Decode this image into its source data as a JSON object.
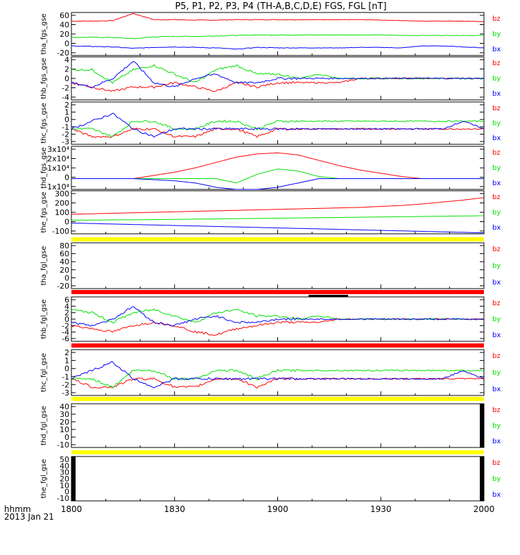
{
  "title": "P5, P1, P2, P3, P4 (TH-A,B,C,D,E) FGS, FGL [nT]",
  "colors": {
    "bx": "#0000ff",
    "by": "#00e000",
    "bz": "#ff0000",
    "bar_yellow": "#ffff00",
    "bar_red": "#ff0000",
    "axis": "#000000"
  },
  "time_axis": {
    "corner_label_1": "hhmm",
    "corner_label_2": "2013 Jan 21",
    "tick_labels": [
      "1800",
      "1830",
      "1900",
      "1930",
      "2000"
    ],
    "range_minutes": [
      0,
      120
    ]
  },
  "chart_data": [
    {
      "type": "line",
      "ylabel": "tha_fgs_gse",
      "ytick_labels": [
        "60",
        "40",
        "20",
        "0",
        "-20"
      ],
      "ylim": [
        -25,
        65
      ],
      "series": [
        {
          "name": "bz",
          "values": [
            47,
            47,
            48,
            63,
            50,
            50,
            49,
            49,
            50,
            50,
            50,
            50,
            50,
            50,
            50,
            49,
            48,
            47,
            47,
            47,
            46
          ]
        },
        {
          "name": "by",
          "values": [
            13,
            13,
            13,
            10,
            14,
            15,
            15,
            16,
            17,
            18,
            18,
            18,
            18,
            18,
            18,
            18,
            17,
            17,
            17,
            17,
            17
          ]
        },
        {
          "name": "bx",
          "values": [
            -5,
            -6,
            -7,
            -10,
            -8,
            -7,
            -8,
            -9,
            -12,
            -8,
            -9,
            -9,
            -9,
            -9,
            -8,
            -8,
            -9,
            -5,
            -5,
            -7,
            -9
          ]
        }
      ]
    },
    {
      "type": "line",
      "ylabel": "thb_fgs_gse",
      "ytick_labels": [
        "4",
        "2",
        "0",
        "-2",
        "-4"
      ],
      "ylim": [
        -5,
        5
      ],
      "series": [
        {
          "name": "bz",
          "values": [
            -1,
            -2,
            -3,
            -2,
            -2,
            -1,
            -2,
            -3,
            -1,
            -2,
            -1,
            -1,
            -1,
            -1,
            0,
            0,
            0,
            0,
            0,
            0,
            0
          ]
        },
        {
          "name": "by",
          "values": [
            2,
            2,
            -1,
            2,
            3,
            1,
            -1,
            2,
            3,
            1,
            1,
            0,
            1,
            0,
            0,
            0,
            0,
            0,
            0,
            0,
            0
          ]
        },
        {
          "name": "bx",
          "values": [
            -1,
            -2,
            0,
            4,
            -1,
            -2,
            0,
            1,
            -1,
            -1,
            0,
            0,
            0,
            0,
            0,
            0,
            0,
            0,
            0,
            0,
            0
          ]
        }
      ]
    },
    {
      "type": "line",
      "ylabel": "thc_fgs_gse",
      "ytick_labels": [
        "2",
        "1",
        "0",
        "-1",
        "-2",
        "-3"
      ],
      "ylim": [
        -3,
        2.5
      ],
      "series": [
        {
          "name": "bz",
          "values": [
            -1,
            -2,
            -2,
            -1,
            -1,
            -2,
            -2,
            -1,
            -1,
            -2,
            -1,
            -1,
            -1,
            -1,
            -1,
            -1,
            -1,
            -1,
            -1,
            -1,
            -1
          ]
        },
        {
          "name": "by",
          "values": [
            -1,
            -1,
            -2,
            0,
            0,
            -1,
            -1,
            0,
            0,
            -1,
            0,
            0,
            0,
            0,
            0,
            0,
            0,
            0,
            0,
            0,
            0
          ]
        },
        {
          "name": "bx",
          "values": [
            -1,
            0,
            1,
            -1,
            -2,
            -1,
            -1,
            -1,
            -1,
            -1,
            -1,
            -1,
            -1,
            -1,
            -1,
            -1,
            -1,
            -1,
            -1,
            0,
            -1
          ]
        }
      ]
    },
    {
      "type": "line",
      "ylabel": "thd_fgs_gse",
      "ytick_labels": [
        "3x10⁴",
        "2x10⁴",
        "1x10⁴",
        "0",
        "-1x10⁴"
      ],
      "ylim": [
        -10000,
        30000
      ],
      "series": [
        {
          "name": "bz",
          "values": [
            0,
            0,
            0,
            0,
            3000,
            6000,
            10000,
            15000,
            20000,
            23000,
            24000,
            22000,
            17000,
            12000,
            8000,
            5000,
            2000,
            0,
            0,
            0,
            0
          ]
        },
        {
          "name": "by",
          "values": [
            0,
            0,
            0,
            0,
            0,
            0,
            0,
            0,
            -4000,
            4000,
            9000,
            7000,
            2000,
            0,
            0,
            0,
            0,
            0,
            0,
            0,
            0
          ]
        },
        {
          "name": "bx",
          "values": [
            0,
            0,
            0,
            0,
            -1000,
            -2000,
            -4000,
            -8000,
            -10000,
            -10000,
            -8000,
            -4000,
            0,
            0,
            0,
            0,
            0,
            0,
            0,
            0,
            0
          ]
        }
      ]
    },
    {
      "type": "line",
      "ylabel": "the_fgs_gse",
      "ytick_labels": [
        "300",
        "200",
        "100",
        "0",
        "-100"
      ],
      "ylim": [
        -130,
        310
      ],
      "series": [
        {
          "name": "bz",
          "values": [
            70,
            75,
            80,
            85,
            90,
            95,
            100,
            105,
            110,
            115,
            120,
            125,
            130,
            135,
            140,
            150,
            160,
            175,
            195,
            215,
            240
          ]
        },
        {
          "name": "by",
          "values": [
            10,
            10,
            12,
            13,
            15,
            17,
            20,
            22,
            25,
            27,
            30,
            32,
            35,
            37,
            40,
            42,
            45,
            47,
            50,
            52,
            55
          ]
        },
        {
          "name": "bx",
          "values": [
            -20,
            -25,
            -30,
            -35,
            -40,
            -45,
            -50,
            -55,
            -60,
            -65,
            -70,
            -75,
            -80,
            -85,
            -90,
            -95,
            -100,
            -105,
            -110,
            -115,
            -120
          ]
        }
      ]
    },
    {
      "type": "line",
      "ylabel": "tha_fgl_gse",
      "ytick_labels": [
        "80",
        "60",
        "40",
        "20",
        "0",
        "-20"
      ],
      "ylim": [
        -25,
        90
      ],
      "series": []
    },
    {
      "type": "line",
      "ylabel": "thb_fgl_gse",
      "ytick_labels": [
        "6",
        "4",
        "2",
        "0",
        "-2",
        "-4",
        "-6"
      ],
      "ylim": [
        -7,
        7
      ],
      "series": [
        {
          "name": "bz",
          "values": [
            -2,
            -3,
            -4,
            -2,
            -1,
            -2,
            -4,
            -5,
            -3,
            -2,
            -1,
            -1,
            -1,
            0,
            0,
            0,
            0,
            0,
            0,
            0,
            0
          ]
        },
        {
          "name": "by",
          "values": [
            3,
            2,
            -1,
            2,
            3,
            1,
            -1,
            2,
            3,
            1,
            1,
            0,
            1,
            0,
            0,
            0,
            0,
            0,
            0,
            0,
            0
          ]
        },
        {
          "name": "bx",
          "values": [
            -1,
            -2,
            0,
            4,
            -1,
            -2,
            0,
            1,
            -1,
            -1,
            0,
            0,
            0,
            0,
            0,
            0,
            0,
            0,
            0,
            0,
            0
          ]
        }
      ]
    },
    {
      "type": "line",
      "ylabel": "thc_fgl_gse",
      "ytick_labels": [
        "2",
        "1",
        "0",
        "-1",
        "-2",
        "-3"
      ],
      "ylim": [
        -3,
        2.5
      ],
      "series": [
        {
          "name": "bz",
          "values": [
            -1,
            -2,
            -2,
            -1,
            -1,
            -2,
            -2,
            -1,
            -1,
            -2,
            -1,
            -1,
            -1,
            -1,
            -1,
            -1,
            -1,
            -1,
            -1,
            -1,
            -1
          ]
        },
        {
          "name": "by",
          "values": [
            -1,
            -1,
            -2,
            0,
            0,
            -1,
            -1,
            0,
            0,
            -1,
            0,
            0,
            0,
            0,
            0,
            0,
            0,
            0,
            0,
            0,
            0
          ]
        },
        {
          "name": "bx",
          "values": [
            -1,
            0,
            1,
            -1,
            -2,
            -1,
            -1,
            -1,
            -1,
            -1,
            -1,
            -1,
            -1,
            -1,
            -1,
            -1,
            -1,
            -1,
            -1,
            0,
            -1
          ]
        }
      ]
    },
    {
      "type": "line",
      "ylabel": "thd_fgl_gse",
      "ytick_labels": [
        "40",
        "30",
        "20",
        "10",
        "0",
        "-10"
      ],
      "ylim": [
        -12,
        42
      ],
      "series": []
    },
    {
      "type": "line",
      "ylabel": "the_fgl_gse",
      "ytick_labels": [
        "50",
        "40",
        "30",
        "20",
        "10",
        "0",
        "-10"
      ],
      "ylim": [
        -12,
        52
      ],
      "series": []
    }
  ],
  "legend": {
    "bz": "bz",
    "by": "by",
    "bx": "bx"
  },
  "status_bars": [
    {
      "color": "yellow"
    },
    {
      "color": "red"
    },
    {
      "color": "red"
    },
    {
      "color": "yellow"
    },
    {
      "color": "yellow"
    }
  ]
}
